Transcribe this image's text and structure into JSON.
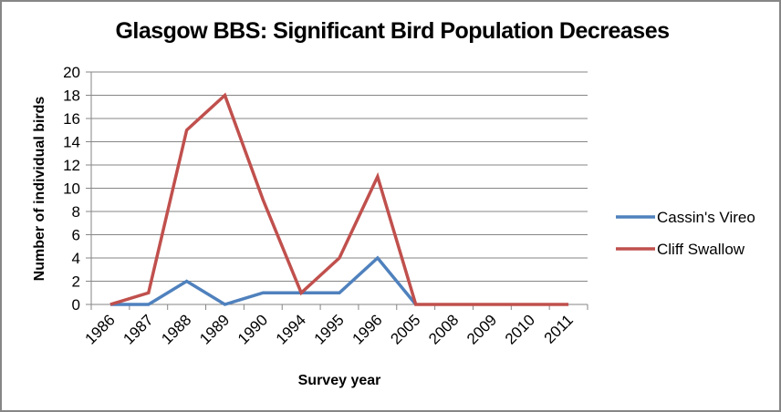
{
  "chart_data": {
    "type": "line",
    "title": "Glasgow BBS: Significant Bird Population Decreases",
    "xlabel": "Survey year",
    "ylabel": "Number of individual birds",
    "categories": [
      "1986",
      "1987",
      "1988",
      "1989",
      "1990",
      "1994",
      "1995",
      "1996",
      "2005",
      "2008",
      "2009",
      "2010",
      "2011"
    ],
    "series": [
      {
        "name": "Cassin's Vireo",
        "color": "#4F81BD",
        "values": [
          0,
          0,
          2,
          0,
          1,
          1,
          1,
          4,
          0,
          null,
          null,
          null,
          null
        ]
      },
      {
        "name": "Cliff Swallow",
        "color": "#C0504D",
        "values": [
          0,
          1,
          15,
          18,
          9,
          1,
          4,
          11,
          0,
          0,
          0,
          0,
          0
        ]
      }
    ],
    "ylim": [
      0,
      20
    ],
    "yticks": [
      "0",
      "2",
      "4",
      "6",
      "8",
      "10",
      "12",
      "14",
      "16",
      "18",
      "20"
    ],
    "grid": true,
    "legend_position": "right"
  }
}
